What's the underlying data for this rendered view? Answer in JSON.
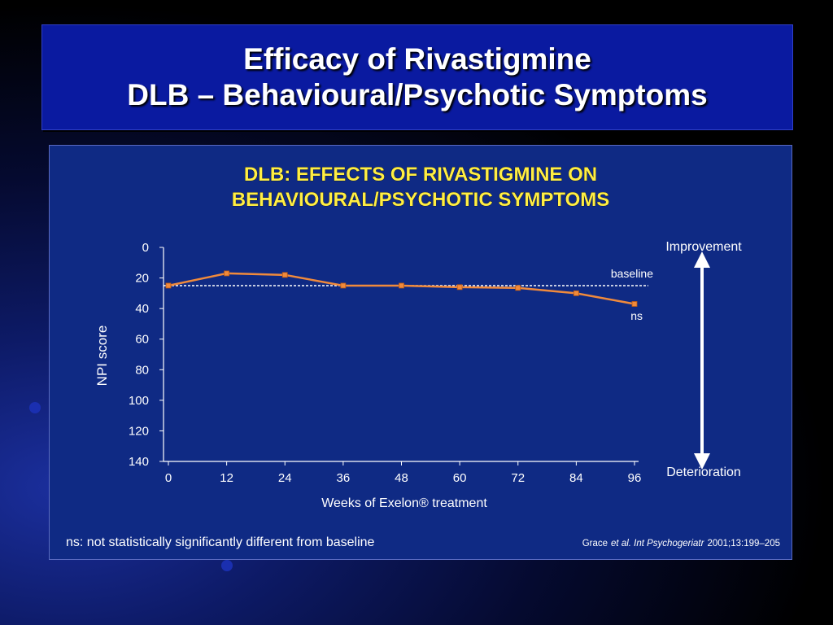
{
  "slide": {
    "title_line1": "Efficacy of Rivastigmine",
    "title_line2": "DLB – Behavioural/Psychotic Symptoms"
  },
  "chart_data": {
    "type": "line",
    "title_line1": "DLB: EFFECTS OF RIVASTIGMINE ON",
    "title_line2": "BEHAVIOURAL/PSYCHOTIC SYMPTOMS",
    "xlabel": "Weeks of  Exelon® treatment",
    "ylabel": "NPI score",
    "x": [
      0,
      12,
      24,
      36,
      48,
      60,
      72,
      84,
      96
    ],
    "xticks": [
      "0",
      "12",
      "24",
      "36",
      "48",
      "60",
      "72",
      "84",
      "96"
    ],
    "yticks": [
      "0",
      "20",
      "40",
      "60",
      "80",
      "100",
      "120",
      "140"
    ],
    "ylim": [
      0,
      140
    ],
    "y_inverted": true,
    "series": [
      {
        "values": [
          25,
          17,
          18,
          25,
          25,
          26,
          26.5,
          30,
          37
        ]
      }
    ],
    "baseline_value": 25,
    "annotations": {
      "baseline": "baseline",
      "ns": "ns",
      "improvement": "Improvement",
      "deterioration": "Deterioration"
    },
    "footnote": "ns: not statistically significantly different from baseline",
    "reference_author": "Grace",
    "reference_etal": "et al. Int Psychogeriatr",
    "reference_detail": "2001;13:199–205",
    "colors": {
      "line": "#f08a3c",
      "title": "#ffee44",
      "text": "#ffffff",
      "panel": "#0f2a84"
    }
  }
}
